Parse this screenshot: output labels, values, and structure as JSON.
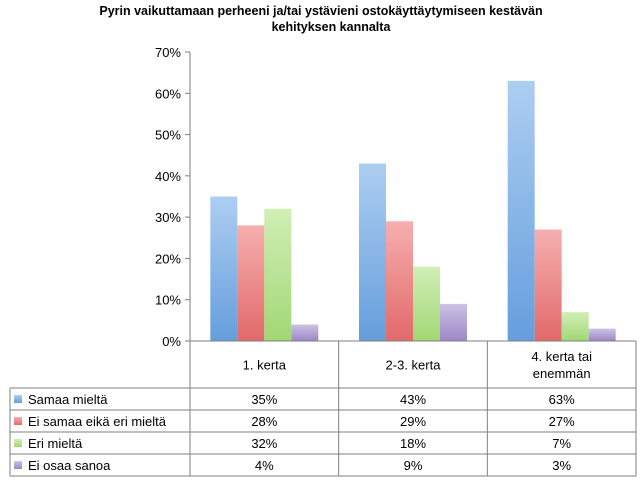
{
  "chart_data": {
    "type": "bar",
    "title_lines": [
      "Pyrin vaikuttamaan perheeni ja/tai ystävieni ostokäyttäytymiseen kestävän",
      "kehityksen kannalta"
    ],
    "categories": [
      "1. kerta",
      "2-3. kerta",
      "4. kerta tai enemmän"
    ],
    "category_lines": [
      [
        "1. kerta"
      ],
      [
        "2-3. kerta"
      ],
      [
        "4. kerta tai",
        "enemmän"
      ]
    ],
    "series": [
      {
        "name": "Samaa mieltä",
        "values": [
          35,
          43,
          63
        ],
        "labels": [
          "35%",
          "43%",
          "63%"
        ],
        "color": "#6aa6e8"
      },
      {
        "name": "Ei samaa eikä eri mieltä",
        "values": [
          28,
          29,
          27
        ],
        "labels": [
          "28%",
          "29%",
          "27%"
        ],
        "color": "#ee6e6e"
      },
      {
        "name": "Eri mieltä",
        "values": [
          32,
          18,
          7
        ],
        "labels": [
          "32%",
          "18%",
          "7%"
        ],
        "color": "#a9e27a"
      },
      {
        "name": "Ei osaa sanoa",
        "values": [
          4,
          9,
          3
        ],
        "labels": [
          "4%",
          "9%",
          "3%"
        ],
        "color": "#a48fcf"
      }
    ],
    "ylim": [
      0,
      70
    ],
    "yticks": [
      "0%",
      "10%",
      "20%",
      "30%",
      "40%",
      "50%",
      "60%",
      "70%"
    ],
    "grid": false,
    "legend": "data-table"
  }
}
